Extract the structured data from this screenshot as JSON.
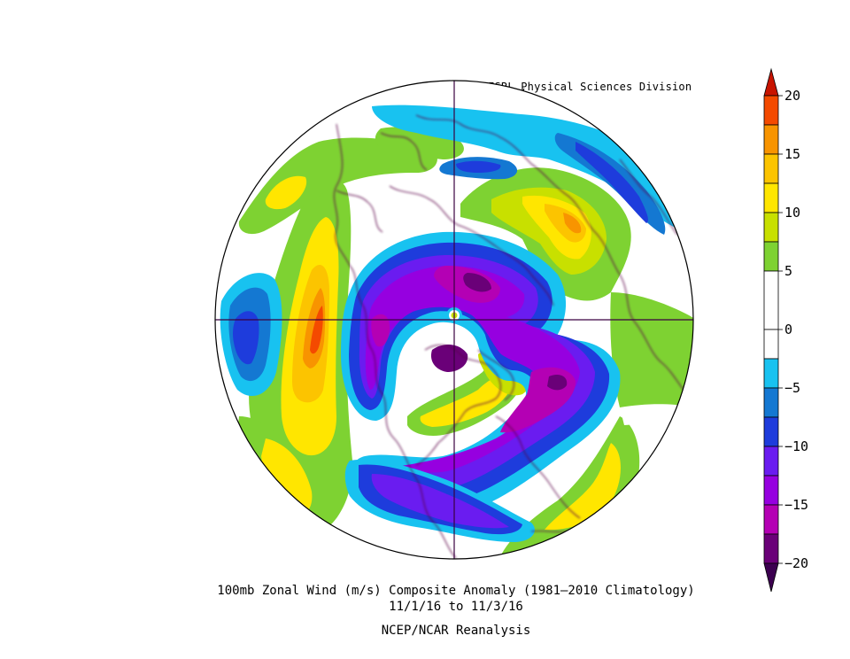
{
  "map": {
    "credit": "NOAA/ESRL Physical Sciences Division",
    "caption_line1": "100mb Zonal Wind (m/s) Composite Anomaly (1981–2010 Climatology)",
    "caption_line2": "11/1/16  to 11/3/16",
    "caption_line3": "NCEP/NCAR Reanalysis",
    "projection": "north polar stereographic",
    "colors": {
      "dark_purple": "#6a0078",
      "magenta": "#b400b4",
      "purple": "#9600e0",
      "violet": "#6a1cf0",
      "blue": "#1e3cdc",
      "mid_blue": "#1478d2",
      "cyan": "#18c2f0",
      "white": "#ffffff",
      "green": "#7ed232",
      "yellow_green": "#c8e000",
      "yellow": "#ffe600",
      "amber": "#fcc400",
      "orange": "#f89400",
      "red_orange": "#f44a00",
      "red": "#c81400",
      "coastline": "#5a0046"
    }
  },
  "colorbar": {
    "labels": [
      "20",
      "15",
      "10",
      "5",
      "0",
      "−5",
      "−10",
      "−15",
      "−20"
    ],
    "range": [
      -20,
      20
    ],
    "interval": 2.5
  }
}
